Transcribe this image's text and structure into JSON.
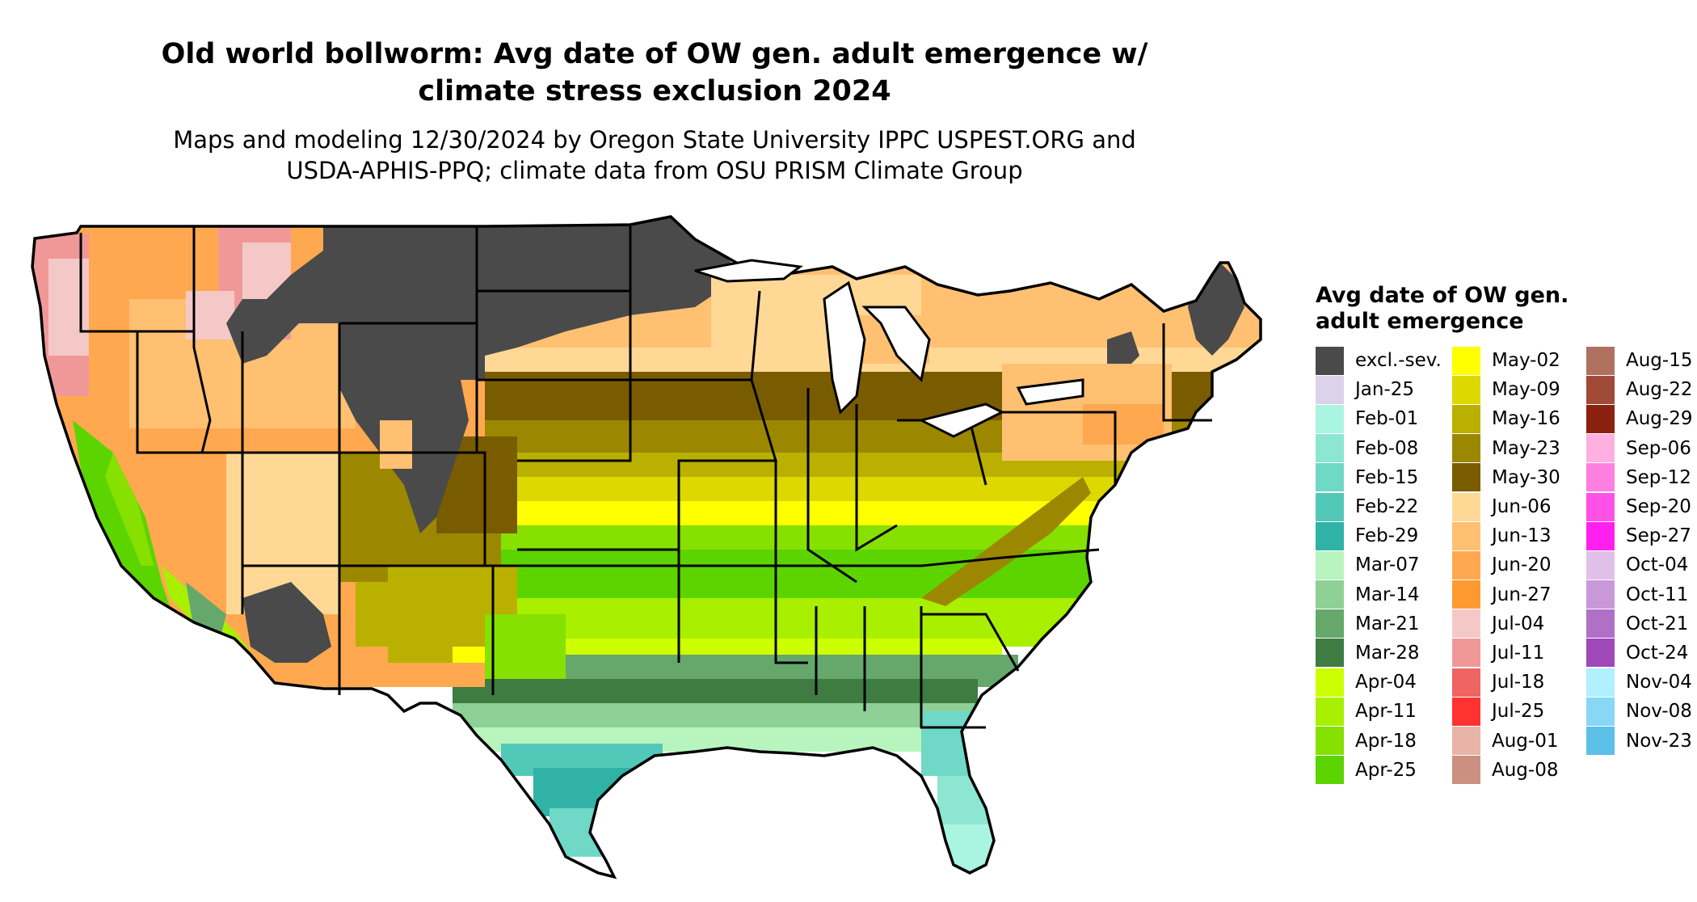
{
  "title": "Old world bollworm: Avg date of OW gen. adult emergence w/\nclimate stress exclusion 2024",
  "subtitle": "Maps and modeling 12/30/2024 by Oregon State University IPPC USPEST.ORG and\nUSDA-APHIS-PPQ; climate data from OSU PRISM Climate Group",
  "legend": {
    "title": "Avg date of OW gen. adult emergence",
    "columns": [
      [
        {
          "label": "excl.-sev.",
          "color": "#4a4a4a"
        },
        {
          "label": "Jan-25",
          "color": "#dcd2ea"
        },
        {
          "label": "Feb-01",
          "color": "#aaf5e2"
        },
        {
          "label": "Feb-08",
          "color": "#8ce6d2"
        },
        {
          "label": "Feb-15",
          "color": "#6fd8c6"
        },
        {
          "label": "Feb-22",
          "color": "#52c8b8"
        },
        {
          "label": "Feb-29",
          "color": "#30b2a6"
        },
        {
          "label": "Mar-07",
          "color": "#b8f5be"
        },
        {
          "label": "Mar-14",
          "color": "#8fd096"
        },
        {
          "label": "Mar-21",
          "color": "#66a86c"
        },
        {
          "label": "Mar-28",
          "color": "#3e7c42"
        },
        {
          "label": "Apr-04",
          "color": "#ccff00"
        },
        {
          "label": "Apr-11",
          "color": "#a8f000"
        },
        {
          "label": "Apr-18",
          "color": "#86e000"
        },
        {
          "label": "Apr-25",
          "color": "#5cd400"
        }
      ],
      [
        {
          "label": "May-02",
          "color": "#ffff00"
        },
        {
          "label": "May-09",
          "color": "#dcd800"
        },
        {
          "label": "May-16",
          "color": "#bab000"
        },
        {
          "label": "May-23",
          "color": "#9c8800"
        },
        {
          "label": "May-30",
          "color": "#7a5c00"
        },
        {
          "label": "Jun-06",
          "color": "#ffd896"
        },
        {
          "label": "Jun-13",
          "color": "#ffc072"
        },
        {
          "label": "Jun-20",
          "color": "#ffa850"
        },
        {
          "label": "Jun-27",
          "color": "#ff9a30"
        },
        {
          "label": "Jul-04",
          "color": "#f5c8c8"
        },
        {
          "label": "Jul-11",
          "color": "#f09898"
        },
        {
          "label": "Jul-18",
          "color": "#f06464"
        },
        {
          "label": "Jul-25",
          "color": "#ff3232"
        },
        {
          "label": "Aug-01",
          "color": "#e8b4a8"
        },
        {
          "label": "Aug-08",
          "color": "#cc9080"
        }
      ],
      [
        {
          "label": "Aug-15",
          "color": "#b07060"
        },
        {
          "label": "Aug-22",
          "color": "#a04a38"
        },
        {
          "label": "Aug-29",
          "color": "#8a2010"
        },
        {
          "label": "Sep-06",
          "color": "#ffb0e0"
        },
        {
          "label": "Sep-12",
          "color": "#ff80e0"
        },
        {
          "label": "Sep-20",
          "color": "#ff50e8"
        },
        {
          "label": "Sep-27",
          "color": "#ff20f0"
        },
        {
          "label": "Oct-04",
          "color": "#e0c0e8"
        },
        {
          "label": "Oct-11",
          "color": "#c898d8"
        },
        {
          "label": "Oct-21",
          "color": "#b070c8"
        },
        {
          "label": "Oct-24",
          "color": "#a048b8"
        },
        {
          "label": "Nov-04",
          "color": "#b0f0ff"
        },
        {
          "label": "Nov-08",
          "color": "#88d8f5"
        },
        {
          "label": "Nov-23",
          "color": "#5cc0e8"
        }
      ]
    ]
  },
  "map": {
    "region": "Contiguous United States"
  }
}
